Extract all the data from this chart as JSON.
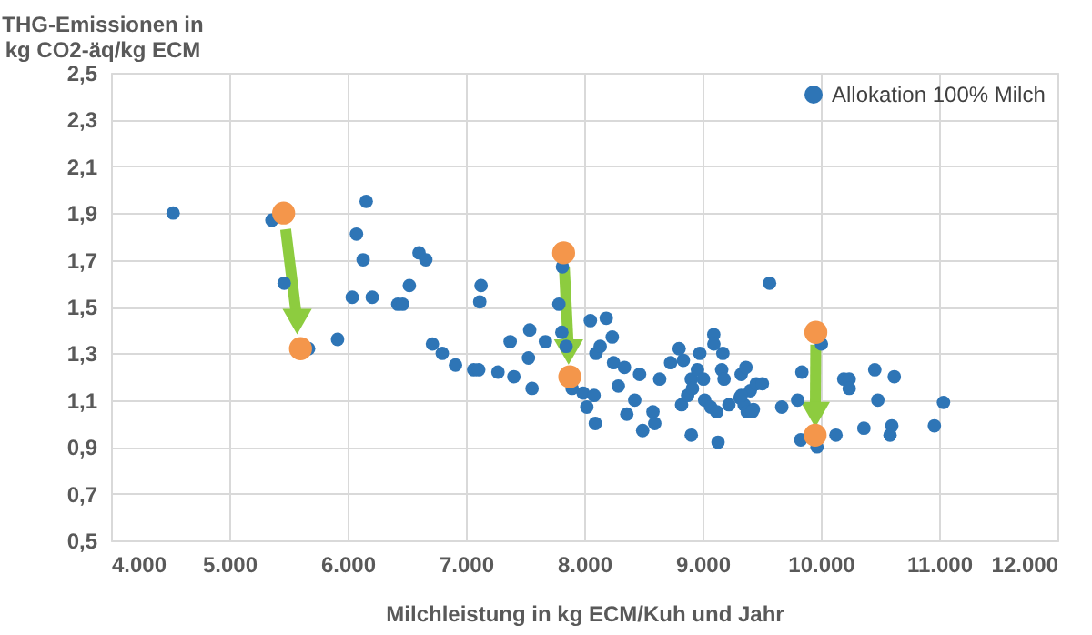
{
  "chart_data": {
    "type": "scatter",
    "xlabel": "Milchleistung in kg ECM/Kuh und Jahr",
    "ylabel": "THG-Emissionen in kg CO2-äq/kg ECM",
    "xlim": [
      4000,
      12000
    ],
    "xticks": [
      {
        "value": 4000,
        "label": "4.000"
      },
      {
        "value": 5000,
        "label": "5.000"
      },
      {
        "value": 6000,
        "label": "6.000"
      },
      {
        "value": 7000,
        "label": "7.000"
      },
      {
        "value": 8000,
        "label": "8.000"
      },
      {
        "value": 9000,
        "label": "9.000"
      },
      {
        "value": 10000,
        "label": "10.000"
      },
      {
        "value": 11000,
        "label": "11.000"
      },
      {
        "value": 12000,
        "label": "12.000"
      }
    ],
    "ylim": [
      0.5,
      2.5
    ],
    "yticks": [
      {
        "value": 0.5,
        "label": "0,5"
      },
      {
        "value": 0.7,
        "label": "0,7"
      },
      {
        "value": 0.9,
        "label": "0,9"
      },
      {
        "value": 1.1,
        "label": "1,1"
      },
      {
        "value": 1.3,
        "label": "1,3"
      },
      {
        "value": 1.5,
        "label": "1,5"
      },
      {
        "value": 1.7,
        "label": "1,7"
      },
      {
        "value": 1.9,
        "label": "1,9"
      },
      {
        "value": 2.1,
        "label": "2,1"
      },
      {
        "value": 2.3,
        "label": "2,3"
      },
      {
        "value": 2.5,
        "label": "2,5"
      }
    ],
    "grid": true,
    "legend": "top right",
    "marker": "circle",
    "series": [
      {
        "name": "Allokation 100% Milch",
        "color": "#2e75b6",
        "x": [
          4525,
          5360,
          5464,
          5670,
          5915,
          6157,
          6075,
          6131,
          6039,
          6208,
          6522,
          6424,
          6465,
          6604,
          6661,
          6717,
          6800,
          6912,
          7066,
          7108,
          7128,
          7117,
          7271,
          7374,
          7405,
          7539,
          7529,
          7559,
          7672,
          7816,
          7786,
          7811,
          7847,
          7898,
          7991,
          8022,
          8052,
          8099,
          8186,
          8135,
          8094,
          8083,
          8237,
          8248,
          8288,
          8340,
          8360,
          8427,
          8468,
          8494,
          8581,
          8596,
          8638,
          8730,
          8802,
          8838,
          8823,
          8874,
          8905,
          8915,
          8957,
          8977,
          9008,
          8905,
          9018,
          9095,
          9096,
          9069,
          9131,
          9120,
          9162,
          9172,
          9182,
          9223,
          9316,
          9327,
          9367,
          9352,
          9404,
          9430,
          9455,
          9567,
          9327,
          9378,
          9419,
          9506,
          9670,
          9804,
          9840,
          9830,
          9968,
          10005,
          10128,
          10194,
          10240,
          10240,
          10364,
          10456,
          10482,
          10600,
          10585,
          10621,
          10960,
          11037
        ],
        "values": [
          1.9,
          1.87,
          1.6,
          1.32,
          1.36,
          1.95,
          1.81,
          1.7,
          1.54,
          1.54,
          1.59,
          1.51,
          1.51,
          1.73,
          1.7,
          1.34,
          1.3,
          1.25,
          1.23,
          1.23,
          1.59,
          1.52,
          1.22,
          1.35,
          1.2,
          1.4,
          1.28,
          1.15,
          1.35,
          1.67,
          1.51,
          1.39,
          1.33,
          1.15,
          1.13,
          1.07,
          1.44,
          1.3,
          1.45,
          1.33,
          1.0,
          1.12,
          1.37,
          1.26,
          1.16,
          1.24,
          1.04,
          1.1,
          1.21,
          0.97,
          1.05,
          1.0,
          1.19,
          1.26,
          1.32,
          1.27,
          1.08,
          1.12,
          1.19,
          1.15,
          1.23,
          1.3,
          1.19,
          0.95,
          1.1,
          1.38,
          1.34,
          1.07,
          0.92,
          1.05,
          1.23,
          1.3,
          1.19,
          1.08,
          1.11,
          1.21,
          1.24,
          1.08,
          1.14,
          1.06,
          1.17,
          1.6,
          1.12,
          1.05,
          1.05,
          1.17,
          1.07,
          1.1,
          1.22,
          0.93,
          0.9,
          1.34,
          0.95,
          1.19,
          1.19,
          1.15,
          0.98,
          1.23,
          1.1,
          0.99,
          0.95,
          1.2,
          0.99,
          1.09
        ]
      },
      {
        "color": "#f4964b",
        "x": [
          5459,
          5602,
          7826,
          7878,
          9958,
          9952
        ],
        "values": [
          1.9,
          1.32,
          1.73,
          1.2,
          1.39,
          0.95
        ]
      }
    ]
  }
}
